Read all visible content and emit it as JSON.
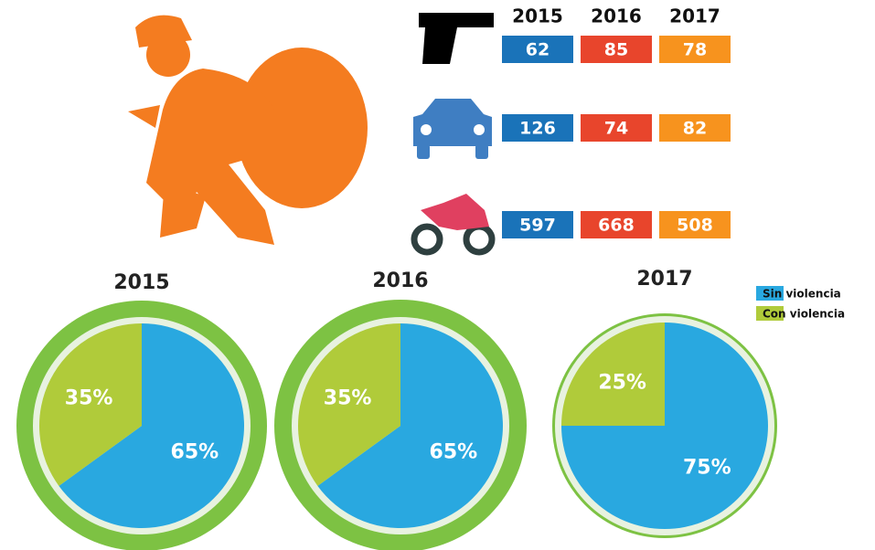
{
  "table": {
    "columns": [
      "2015",
      "2016",
      "2017"
    ],
    "rows": [
      [
        62,
        85,
        78
      ],
      [
        126,
        74,
        82
      ],
      [
        597,
        668,
        508
      ]
    ]
  },
  "chart_data": [
    {
      "type": "pie",
      "title": "2015",
      "categories": [
        "Sin violencia",
        "Con violencia"
      ],
      "values": [
        65,
        35
      ],
      "value_labels": [
        "65%",
        "35%"
      ],
      "colors": [
        "#29a8e0",
        "#b0cb3a"
      ],
      "legend": false
    },
    {
      "type": "pie",
      "title": "2016",
      "categories": [
        "Sin violencia",
        "Con violencia"
      ],
      "values": [
        65,
        35
      ],
      "value_labels": [
        "65%",
        "35%"
      ],
      "colors": [
        "#29a8e0",
        "#b0cb3a"
      ],
      "legend": false
    },
    {
      "type": "pie",
      "title": "2017",
      "categories": [
        "Sin violencia",
        "Con violencia"
      ],
      "values": [
        75,
        25
      ],
      "value_labels": [
        "75%",
        "25%"
      ],
      "colors": [
        "#29a8e0",
        "#b0cb3a"
      ],
      "legend": true
    }
  ]
}
